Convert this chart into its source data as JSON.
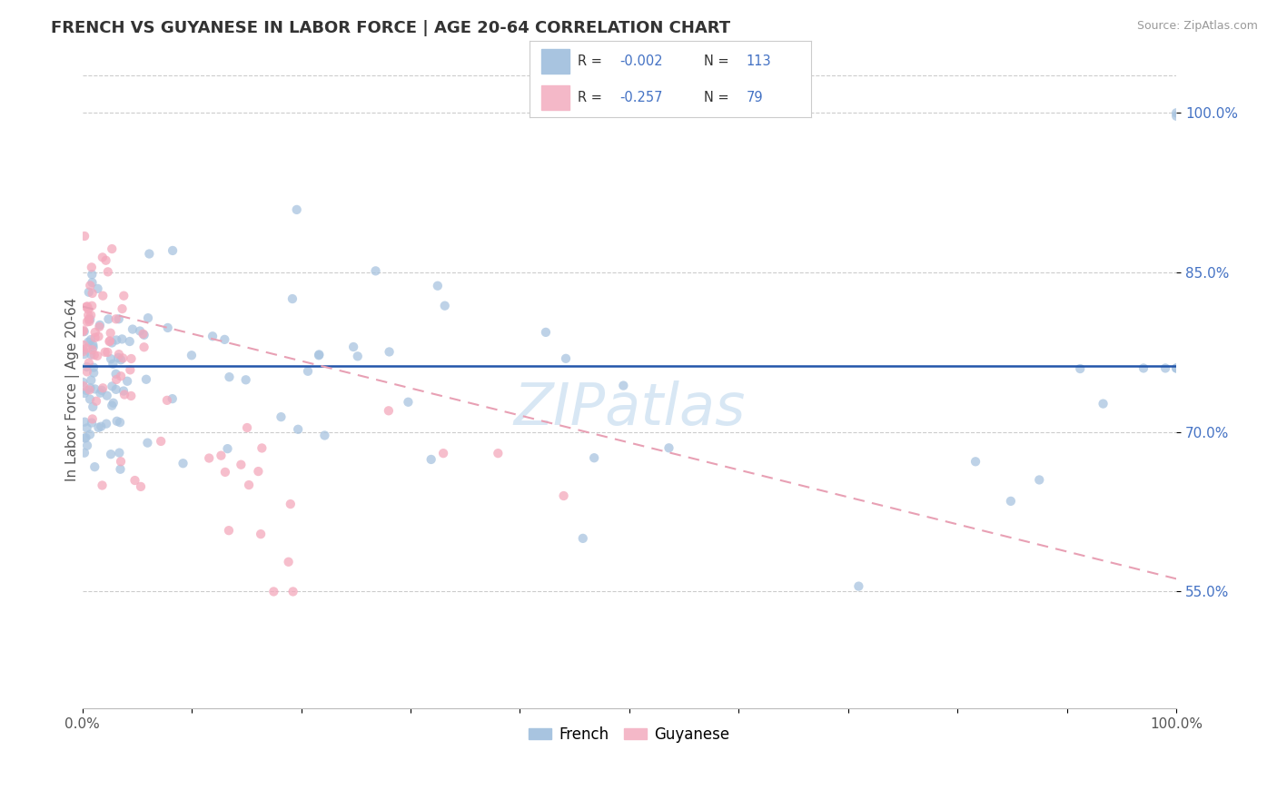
{
  "title": "FRENCH VS GUYANESE IN LABOR FORCE | AGE 20-64 CORRELATION CHART",
  "source": "Source: ZipAtlas.com",
  "ylabel": "In Labor Force | Age 20-64",
  "xlim": [
    0.0,
    1.0
  ],
  "ylim": [
    0.44,
    1.04
  ],
  "y_ticks": [
    0.55,
    0.7,
    0.85,
    1.0
  ],
  "y_tick_labels": [
    "55.0%",
    "70.0%",
    "85.0%",
    "100.0%"
  ],
  "french_R": -0.002,
  "french_N": 113,
  "guyanese_R": -0.257,
  "guyanese_N": 79,
  "french_color": "#a8c4e0",
  "guyanese_color": "#f4a8bc",
  "french_line_color": "#2255aa",
  "guyanese_line_color": "#e8a0b4",
  "watermark": "ZIPatlas",
  "french_line_y": 0.762,
  "guyanese_line_y0": 0.818,
  "guyanese_line_y1": 0.562
}
